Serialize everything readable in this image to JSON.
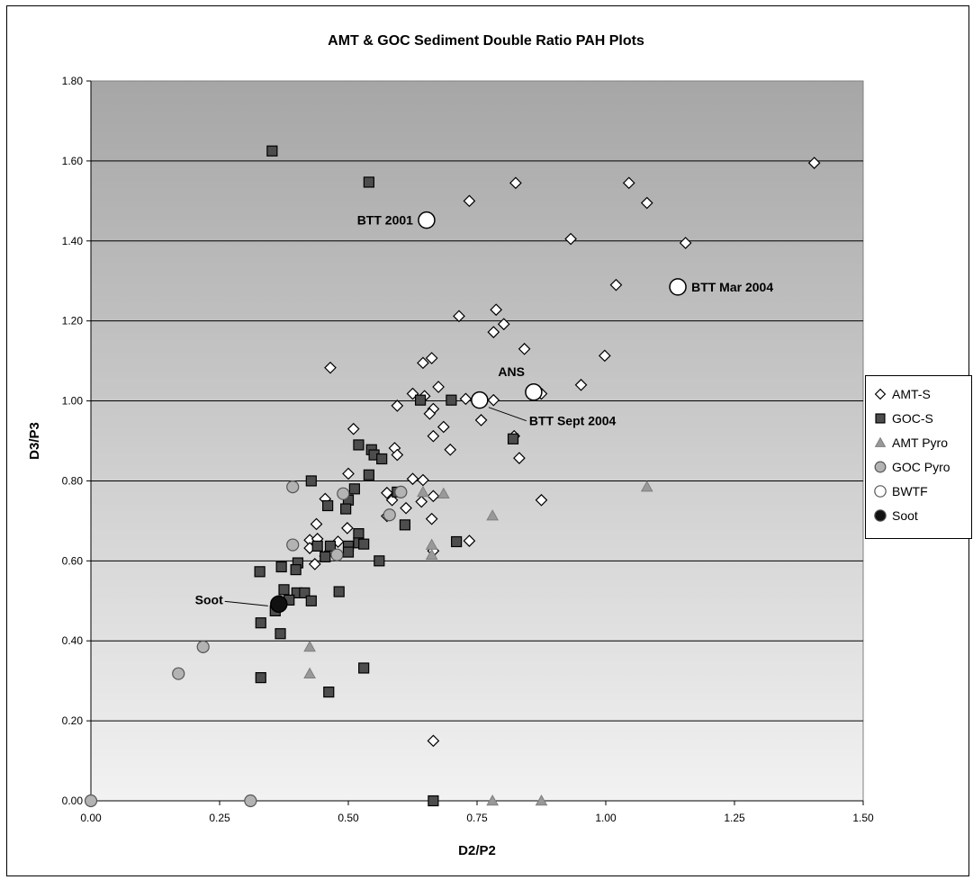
{
  "chart_data": {
    "type": "scatter",
    "title": "AMT & GOC Sediment Double Ratio PAH Plots",
    "xlabel": "D2/P2",
    "ylabel": "D3/P3",
    "xlim": [
      0,
      1.5
    ],
    "ylim": [
      0,
      1.8
    ],
    "x_ticks": [
      "0.00",
      "0.25",
      "0.50",
      "0.75",
      "1.00",
      "1.25",
      "1.50"
    ],
    "y_ticks": [
      "0.00",
      "0.20",
      "0.40",
      "0.60",
      "0.80",
      "1.00",
      "1.20",
      "1.40",
      "1.60",
      "1.80"
    ],
    "grid": "horizontal",
    "legend_position": "right",
    "series": [
      {
        "name": "AMT-S",
        "marker": "diamond",
        "color": "#ffffff",
        "points": [
          [
            1.405,
            1.595
          ],
          [
            1.045,
            1.545
          ],
          [
            0.825,
            1.545
          ],
          [
            0.735,
            1.5
          ],
          [
            1.08,
            1.495
          ],
          [
            0.932,
            1.405
          ],
          [
            1.155,
            1.395
          ],
          [
            1.02,
            1.29
          ],
          [
            0.787,
            1.228
          ],
          [
            0.715,
            1.212
          ],
          [
            0.802,
            1.192
          ],
          [
            0.782,
            1.172
          ],
          [
            0.842,
            1.13
          ],
          [
            0.998,
            1.113
          ],
          [
            0.662,
            1.107
          ],
          [
            0.645,
            1.095
          ],
          [
            0.465,
            1.083
          ],
          [
            0.952,
            1.04
          ],
          [
            0.675,
            1.035
          ],
          [
            0.625,
            1.018
          ],
          [
            0.648,
            1.012
          ],
          [
            0.728,
            1.005
          ],
          [
            0.782,
            1.002
          ],
          [
            0.875,
            1.018
          ],
          [
            0.595,
            0.988
          ],
          [
            0.665,
            0.98
          ],
          [
            0.658,
            0.968
          ],
          [
            0.758,
            0.952
          ],
          [
            0.685,
            0.935
          ],
          [
            0.51,
            0.93
          ],
          [
            0.665,
            0.912
          ],
          [
            0.822,
            0.912
          ],
          [
            0.59,
            0.882
          ],
          [
            0.698,
            0.878
          ],
          [
            0.595,
            0.865
          ],
          [
            0.832,
            0.857
          ],
          [
            0.5,
            0.818
          ],
          [
            0.625,
            0.805
          ],
          [
            0.645,
            0.802
          ],
          [
            0.575,
            0.77
          ],
          [
            0.665,
            0.762
          ],
          [
            0.455,
            0.755
          ],
          [
            0.585,
            0.752
          ],
          [
            0.642,
            0.748
          ],
          [
            0.875,
            0.752
          ],
          [
            0.612,
            0.732
          ],
          [
            0.575,
            0.712
          ],
          [
            0.662,
            0.705
          ],
          [
            0.438,
            0.692
          ],
          [
            0.498,
            0.682
          ],
          [
            0.425,
            0.652
          ],
          [
            0.44,
            0.655
          ],
          [
            0.48,
            0.648
          ],
          [
            0.735,
            0.65
          ],
          [
            0.425,
            0.632
          ],
          [
            0.455,
            0.612
          ],
          [
            0.435,
            0.592
          ],
          [
            0.665,
            0.625
          ],
          [
            0.665,
            0.15
          ]
        ]
      },
      {
        "name": "GOC-S",
        "marker": "square",
        "color": "#4d4d4d",
        "points": [
          [
            0.352,
            1.625
          ],
          [
            0.54,
            1.547
          ],
          [
            0.64,
            1.002
          ],
          [
            0.7,
            1.002
          ],
          [
            0.82,
            0.905
          ],
          [
            0.52,
            0.89
          ],
          [
            0.545,
            0.878
          ],
          [
            0.55,
            0.865
          ],
          [
            0.565,
            0.855
          ],
          [
            0.54,
            0.815
          ],
          [
            0.428,
            0.8
          ],
          [
            0.512,
            0.78
          ],
          [
            0.595,
            0.772
          ],
          [
            0.5,
            0.752
          ],
          [
            0.46,
            0.738
          ],
          [
            0.495,
            0.73
          ],
          [
            0.61,
            0.69
          ],
          [
            0.52,
            0.668
          ],
          [
            0.71,
            0.648
          ],
          [
            0.52,
            0.645
          ],
          [
            0.53,
            0.642
          ],
          [
            0.44,
            0.637
          ],
          [
            0.465,
            0.637
          ],
          [
            0.5,
            0.637
          ],
          [
            0.5,
            0.622
          ],
          [
            0.455,
            0.61
          ],
          [
            0.56,
            0.6
          ],
          [
            0.402,
            0.595
          ],
          [
            0.37,
            0.585
          ],
          [
            0.398,
            0.578
          ],
          [
            0.328,
            0.573
          ],
          [
            0.375,
            0.528
          ],
          [
            0.482,
            0.523
          ],
          [
            0.4,
            0.52
          ],
          [
            0.415,
            0.52
          ],
          [
            0.385,
            0.502
          ],
          [
            0.428,
            0.5
          ],
          [
            0.358,
            0.475
          ],
          [
            0.33,
            0.445
          ],
          [
            0.368,
            0.418
          ],
          [
            0.53,
            0.332
          ],
          [
            0.33,
            0.308
          ],
          [
            0.462,
            0.272
          ],
          [
            0.665,
            0.0
          ]
        ]
      },
      {
        "name": "AMT Pyro",
        "marker": "triangle",
        "color": "#999999",
        "points": [
          [
            1.08,
            0.785
          ],
          [
            0.685,
            0.768
          ],
          [
            0.645,
            0.772
          ],
          [
            0.78,
            0.713
          ],
          [
            0.662,
            0.64
          ],
          [
            0.662,
            0.615
          ],
          [
            0.425,
            0.385
          ],
          [
            0.425,
            0.318
          ],
          [
            0.78,
            0.0
          ],
          [
            0.875,
            0.0
          ]
        ]
      },
      {
        "name": "GOC Pyro",
        "marker": "circle",
        "color": "#b3b3b3",
        "points": [
          [
            0.392,
            0.785
          ],
          [
            0.49,
            0.768
          ],
          [
            0.602,
            0.772
          ],
          [
            0.58,
            0.715
          ],
          [
            0.392,
            0.64
          ],
          [
            0.478,
            0.615
          ],
          [
            0.218,
            0.385
          ],
          [
            0.17,
            0.318
          ],
          [
            0.0,
            0.0
          ],
          [
            0.31,
            0.0
          ]
        ]
      },
      {
        "name": "BWTF",
        "marker": "circle-large",
        "color": "#ffffff",
        "points": [
          [
            0.652,
            1.452
          ],
          [
            1.14,
            1.285
          ],
          [
            0.86,
            1.022
          ],
          [
            0.755,
            1.002
          ]
        ]
      },
      {
        "name": "Soot",
        "marker": "circle-large",
        "color": "#111111",
        "points": [
          [
            0.365,
            0.492
          ]
        ]
      }
    ],
    "annotations": [
      {
        "text": "BTT 2001",
        "x": 0.652,
        "y": 1.452
      },
      {
        "text": "BTT Mar 2004",
        "x": 1.14,
        "y": 1.285
      },
      {
        "text": "ANS",
        "x": 0.86,
        "y": 1.022
      },
      {
        "text": "BTT Sept 2004",
        "x": 0.755,
        "y": 1.002
      },
      {
        "text": "Soot",
        "x": 0.365,
        "y": 0.492
      }
    ]
  }
}
